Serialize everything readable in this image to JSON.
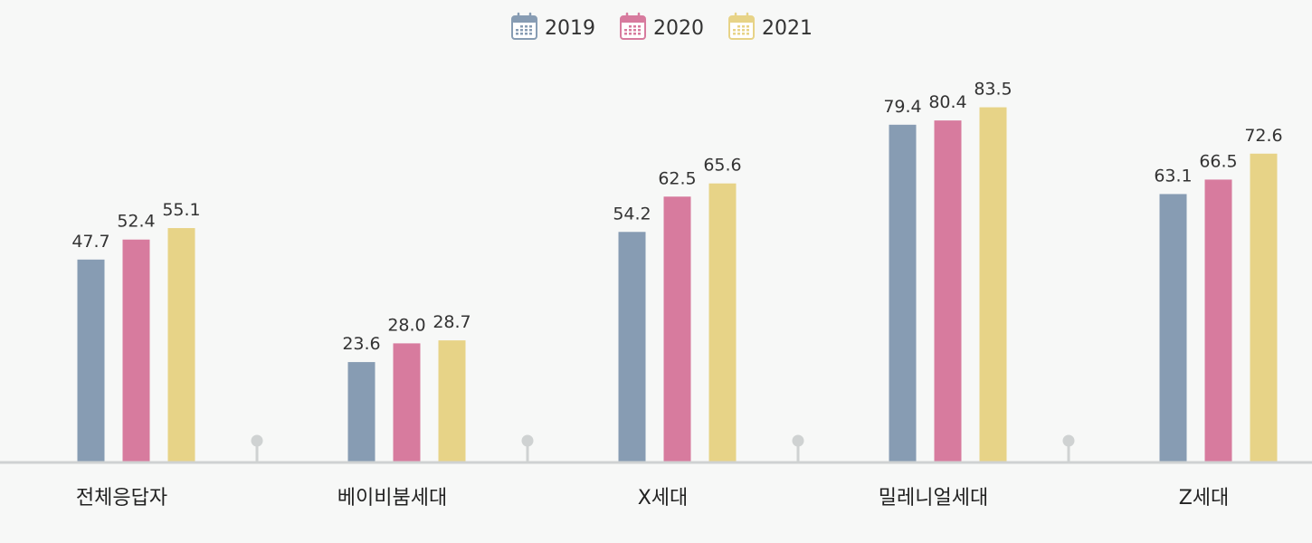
{
  "chart_data": {
    "type": "bar",
    "title": "",
    "xlabel": "",
    "ylabel": "",
    "ylim": [
      0,
      100
    ],
    "grid": false,
    "legend_position": "top-center",
    "categories": [
      "전체응답자",
      "베이비붐세대",
      "X세대",
      "밀레니얼세대",
      "Z세대"
    ],
    "series": [
      {
        "name": "2019",
        "color": "#879cb3",
        "values": [
          47.7,
          23.6,
          54.2,
          79.4,
          63.1
        ],
        "labels": [
          "47.7",
          "23.6",
          "54.2",
          "79.4",
          "63.1"
        ]
      },
      {
        "name": "2020",
        "color": "#d77b9e",
        "values": [
          52.4,
          28.0,
          62.5,
          80.4,
          66.5
        ],
        "labels": [
          "52.4",
          "28.0",
          "62.5",
          "80.4",
          "66.5"
        ]
      },
      {
        "name": "2021",
        "color": "#e7d387",
        "values": [
          55.1,
          28.7,
          65.6,
          83.5,
          72.6
        ],
        "labels": [
          "55.1",
          "28.7",
          "65.6",
          "83.5",
          "72.6"
        ]
      }
    ],
    "legend_icon": "calendar-icon"
  },
  "colors": {
    "axis": "#cfd2d2",
    "divider": "#cfd2d2",
    "background": "#f7f8f7"
  }
}
